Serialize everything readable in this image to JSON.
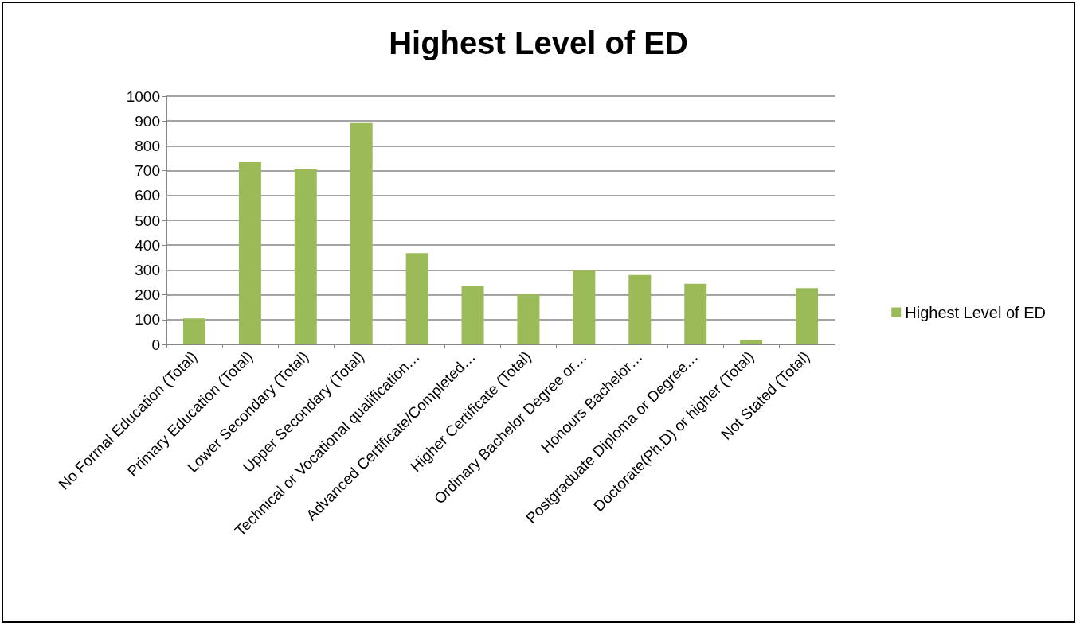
{
  "chart_data": {
    "type": "bar",
    "title": "Highest Level of ED",
    "categories": [
      "No Formal Education (Total)",
      "Primary Education (Total)",
      "Lower Secondary (Total)",
      "Upper Secondary (Total)",
      "Technical or Vocational qualification…",
      "Advanced Certificate/Completed…",
      "Higher Certificate (Total)",
      "Ordinary Bachelor Degree or…",
      "Honours Bachelor…",
      "Postgraduate Diploma or Degree…",
      "Doctorate(Ph.D) or higher (Total)",
      "Not Stated (Total)"
    ],
    "series": [
      {
        "name": "Highest Level of ED",
        "color": "#9bbb59",
        "values": [
          105,
          734,
          706,
          892,
          368,
          234,
          202,
          299,
          280,
          244,
          18,
          227
        ]
      }
    ],
    "ylim": [
      0,
      1000
    ],
    "yticks": [
      0,
      100,
      200,
      300,
      400,
      500,
      600,
      700,
      800,
      900,
      1000
    ],
    "grid": "y",
    "legend": "right"
  }
}
